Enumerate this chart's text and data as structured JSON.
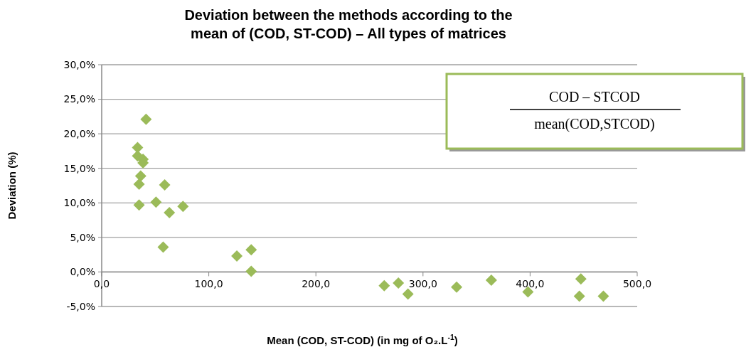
{
  "chart_data": {
    "type": "scatter",
    "title": "Deviation between the methods according to the mean of (COD, ST-COD) – All types of matrices",
    "xlabel": "Mean (COD, ST-COD) (in mg of O₂.L$^{-1}$)",
    "ylabel": "Deviation (%)",
    "x": [
      41.4,
      33.5,
      33.5,
      38.6,
      38.6,
      36.4,
      34.9,
      58.8,
      34.9,
      50.7,
      63.2,
      75.9,
      57.4,
      126.2,
      139.6,
      139.6,
      263.8,
      277,
      286,
      331.4,
      363.8,
      398,
      447.4,
      446,
      468.4
    ],
    "series": [
      {
        "color": "#9bbb59",
        "values": [
          22.1,
          18.0,
          16.8,
          16.3,
          15.8,
          13.9,
          12.7,
          12.6,
          9.7,
          10.1,
          8.6,
          9.5,
          3.6,
          2.3,
          3.2,
          0.1,
          -2.0,
          -1.6,
          -3.2,
          -2.2,
          -1.2,
          -2.9,
          -1.0,
          -3.5,
          -3.5
        ]
      }
    ],
    "xlim": [
      0,
      500
    ],
    "ylim": [
      -5,
      30
    ],
    "xticks": [
      {
        "value": 0,
        "label": "0,0"
      },
      {
        "value": 100,
        "label": "100,0"
      },
      {
        "value": 200,
        "label": "200,0"
      },
      {
        "value": 300,
        "label": "300,0"
      },
      {
        "value": 400,
        "label": "400,0"
      },
      {
        "value": 500,
        "label": "500,0"
      }
    ],
    "yticks": [
      {
        "value": -5,
        "label": "-5,0%"
      },
      {
        "value": 0,
        "label": "0,0%"
      },
      {
        "value": 5,
        "label": "5,0%"
      },
      {
        "value": 10,
        "label": "10,0%"
      },
      {
        "value": 15,
        "label": "15,0%"
      },
      {
        "value": 20,
        "label": "20,0%"
      },
      {
        "value": 25,
        "label": "25,0%"
      },
      {
        "value": 30,
        "label": "30,0%"
      }
    ],
    "grid": "y",
    "marker": "diamond",
    "annotations": [
      "COD – STCOD",
      "mean(COD,STCOD)"
    ]
  }
}
